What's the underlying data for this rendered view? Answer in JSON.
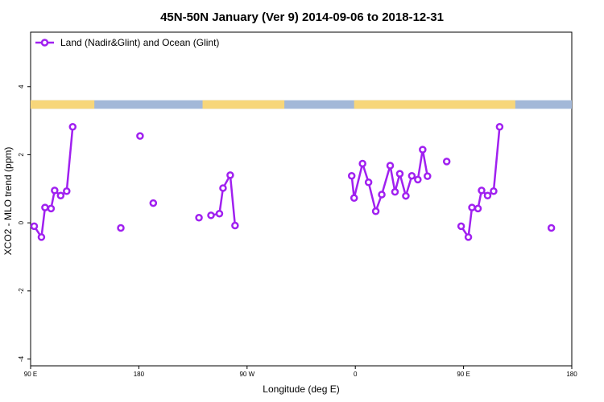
{
  "chart_data": {
    "type": "line",
    "title": "45N-50N January (Ver 9)   2014-09-06 to 2018-12-31",
    "xlabel": "Longitude (deg E)",
    "ylabel": "XCO2 - MLO trend (ppm)",
    "xlim": [
      90,
      540
    ],
    "ylim": [
      -4.2,
      5.6
    ],
    "x_ticks": [
      {
        "value": 90,
        "label": "90 E"
      },
      {
        "value": 180,
        "label": "180"
      },
      {
        "value": 270,
        "label": "90 W"
      },
      {
        "value": 360,
        "label": "0"
      },
      {
        "value": 450,
        "label": "90 E"
      },
      {
        "value": 540,
        "label": "180"
      }
    ],
    "y_ticks": [
      {
        "value": -4,
        "label": "-4"
      },
      {
        "value": -2,
        "label": "-2"
      },
      {
        "value": 0,
        "label": "0"
      },
      {
        "value": 2,
        "label": "2"
      },
      {
        "value": 4,
        "label": "4"
      }
    ],
    "legend": {
      "position": "top-left",
      "label": "Land (Nadir&Glint) and Ocean (Glint)"
    },
    "series_color": "#a020f0",
    "map_strip": {
      "y_range": [
        3.35,
        3.6
      ],
      "land_color": "#f7d67a",
      "ocean_color": "#a3b8d8"
    },
    "series": [
      {
        "segments": [
          [
            [
              93,
              -0.1
            ],
            [
              99,
              -0.42
            ],
            [
              102,
              0.45
            ],
            [
              107,
              0.42
            ],
            [
              110,
              0.95
            ],
            [
              115,
              0.8
            ],
            [
              120,
              0.93
            ],
            [
              125,
              2.82
            ]
          ],
          [
            [
              165,
              -0.15
            ]
          ],
          [
            [
              181,
              2.55
            ]
          ],
          [
            [
              192,
              0.58
            ]
          ],
          [
            [
              230,
              0.15
            ]
          ],
          [
            [
              240,
              0.22
            ],
            [
              247,
              0.27
            ],
            [
              250,
              1.02
            ],
            [
              256,
              1.4
            ],
            [
              260,
              -0.08
            ]
          ],
          [
            [
              357,
              1.38
            ],
            [
              359,
              0.73
            ],
            [
              366,
              1.74
            ],
            [
              371,
              1.19
            ],
            [
              377,
              0.34
            ],
            [
              382,
              0.83
            ],
            [
              389,
              1.68
            ],
            [
              393,
              0.91
            ],
            [
              397,
              1.44
            ],
            [
              402,
              0.79
            ],
            [
              407,
              1.38
            ],
            [
              412,
              1.27
            ],
            [
              416,
              2.15
            ],
            [
              420,
              1.37
            ]
          ],
          [
            [
              436,
              1.8
            ]
          ],
          [
            [
              448,
              -0.1
            ],
            [
              454,
              -0.42
            ],
            [
              457,
              0.45
            ],
            [
              462,
              0.42
            ],
            [
              465,
              0.95
            ],
            [
              470,
              0.8
            ],
            [
              475,
              0.93
            ],
            [
              480,
              2.82
            ]
          ],
          [
            [
              523,
              -0.15
            ]
          ]
        ]
      }
    ]
  }
}
